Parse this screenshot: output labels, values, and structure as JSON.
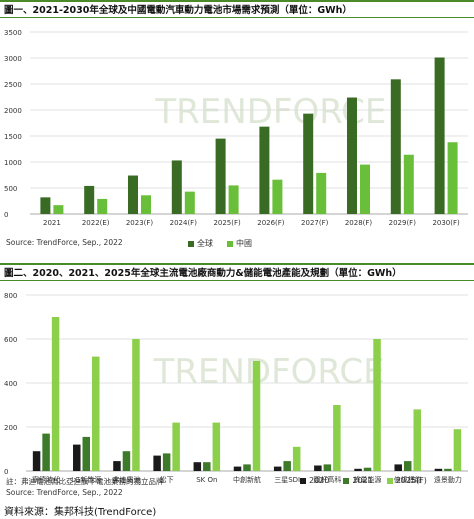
{
  "colors": {
    "global": "#3a6b24",
    "china": "#6abf3a",
    "y2020": "#1a1a1a",
    "y2021": "#3d7a2a",
    "y2025f": "#8ccf4a",
    "title_rule": "#4a8a2a",
    "watermark": "#dfe8d8"
  },
  "watermark_text": "TRENDFORCE",
  "footer": {
    "source": "資料來源：集邦科技(TrendForce)"
  },
  "chart_data": [
    {
      "type": "bar",
      "title": "圖一、2021-2030年全球及中國電動汽車動力電池市場需求預測（單位：GWh）",
      "categories": [
        "2021",
        "2022(E)",
        "2023(F)",
        "2024(F)",
        "2025(F)",
        "2026(F)",
        "2027(F)",
        "2028(F)",
        "2029(F)",
        "2030(F)"
      ],
      "series": [
        {
          "name": "全球",
          "values": [
            320,
            540,
            740,
            1030,
            1450,
            1680,
            1930,
            2240,
            2590,
            3010
          ]
        },
        {
          "name": "中國",
          "values": [
            170,
            290,
            360,
            430,
            550,
            660,
            790,
            950,
            1140,
            1380
          ]
        }
      ],
      "yticks": [
        0,
        500,
        1000,
        1500,
        2000,
        2500,
        3000,
        3500
      ],
      "ylim": [
        0,
        3500
      ],
      "grid": true,
      "legend": "bottom",
      "source": "Source: TrendForce, Sep., 2022"
    },
    {
      "type": "bar",
      "title": "圖二、2020、2021、2025年全球主流電池廠商動力&儲能電池產能及規劃（單位：GWh）",
      "categories": [
        "寧德時代",
        "LG新能源",
        "弗迪電池",
        "松下",
        "SK On",
        "中創新航",
        "三星SDI",
        "國軒高科",
        "蜂巢能源",
        "億緯鋰能",
        "遠景動力"
      ],
      "series": [
        {
          "name": "2020",
          "values": [
            90,
            120,
            45,
            70,
            40,
            20,
            20,
            25,
            10,
            30,
            10
          ]
        },
        {
          "name": "2021",
          "values": [
            170,
            155,
            90,
            80,
            40,
            30,
            45,
            30,
            15,
            45,
            10
          ]
        },
        {
          "name": "2025(F)",
          "values": [
            700,
            520,
            600,
            220,
            220,
            500,
            110,
            300,
            600,
            280,
            190
          ]
        }
      ],
      "yticks": [
        0,
        200,
        400,
        600,
        800
      ],
      "ylim": [
        0,
        800
      ],
      "grid": true,
      "legend": "bottom-right",
      "note": "註：弗迪電池為比亞迪旗下電池業務的獨立品牌",
      "source": "Source: TrendForce, Sep., 2022"
    }
  ]
}
